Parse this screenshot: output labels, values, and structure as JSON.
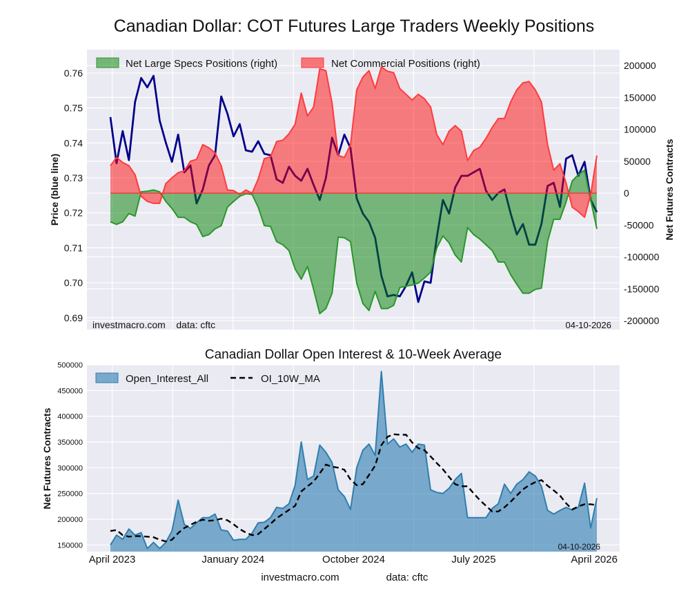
{
  "title": "Canadian Dollar: COT Futures Large Traders Weekly Positions",
  "footer": {
    "site": "investmacro.com",
    "source": "data: cftc"
  },
  "chart_data": [
    {
      "type": "line+area",
      "title": "",
      "grid": true,
      "legend": "top-left",
      "ylabel_left": "Price (blue line)",
      "ylabel_right": "Net Futures Contracts",
      "ylim_left": [
        0.6866,
        0.7667
      ],
      "ylim_right": [
        -214000,
        225000
      ],
      "yticks_left": [
        "0.69",
        "0.70",
        "0.71",
        "0.72",
        "0.73",
        "0.74",
        "0.75",
        "0.76"
      ],
      "yticks_right": [
        "-200000",
        "-150000",
        "-100000",
        "-50000",
        "0",
        "50000",
        "100000",
        "150000",
        "200000"
      ],
      "watermark": "investmacro.com    data: cftc",
      "date_stamp": "04-10-2026",
      "series": [
        {
          "name": "Net Large Specs Positions (right)",
          "axis": "right",
          "kind": "area",
          "color": "#008000",
          "values": [
            -45000,
            -49000,
            -45000,
            -32000,
            -36000,
            2000,
            3000,
            5000,
            2000,
            -13000,
            -24000,
            -38000,
            -38000,
            -45000,
            -49000,
            -68000,
            -65000,
            -56000,
            -51000,
            -22000,
            -13000,
            -5000,
            -1000,
            -2000,
            -22000,
            -51000,
            -52000,
            -76000,
            -81000,
            -90000,
            -119000,
            -135000,
            -115000,
            -151000,
            -189000,
            -181000,
            -157000,
            -69000,
            -70000,
            -76000,
            -141000,
            -173000,
            -184000,
            -154000,
            -181000,
            -181000,
            -176000,
            -148000,
            -146000,
            -144000,
            -141000,
            -133000,
            -124000,
            -86000,
            -67000,
            -78000,
            -97000,
            -108000,
            -54000,
            -65000,
            -72000,
            -81000,
            -90000,
            -108000,
            -108000,
            -128000,
            -143000,
            -157000,
            -157000,
            -151000,
            -149000,
            -76000,
            -41000,
            -41000,
            -14000,
            19000,
            29000,
            36000,
            -11000,
            -56000
          ]
        },
        {
          "name": "Net Commercial Positions (right)",
          "axis": "right",
          "kind": "area",
          "color": "#ff0000",
          "values": [
            43000,
            56000,
            48000,
            43000,
            29000,
            -5000,
            -13000,
            -16000,
            -16000,
            15000,
            24000,
            32000,
            35000,
            50000,
            53000,
            76000,
            71000,
            63000,
            43000,
            5000,
            4000,
            -2000,
            5000,
            0,
            22000,
            54000,
            57000,
            81000,
            83000,
            93000,
            108000,
            157000,
            121000,
            135000,
            195000,
            192000,
            141000,
            59000,
            56000,
            76000,
            162000,
            182000,
            192000,
            164000,
            198000,
            191000,
            189000,
            164000,
            155000,
            146000,
            155000,
            148000,
            135000,
            92000,
            76000,
            97000,
            106000,
            97000,
            51000,
            67000,
            72000,
            86000,
            103000,
            117000,
            117000,
            143000,
            162000,
            173000,
            175000,
            162000,
            143000,
            76000,
            36000,
            46000,
            16000,
            -22000,
            -29000,
            -38000,
            -2000,
            59000
          ]
        },
        {
          "axis": "left",
          "kind": "line",
          "color": "#00008b",
          "values": [
            0.7474,
            0.7342,
            0.7434,
            0.7351,
            0.7517,
            0.7586,
            0.7559,
            0.7592,
            0.7464,
            0.7401,
            0.7346,
            0.7424,
            0.7316,
            0.7336,
            0.7227,
            0.7267,
            0.7336,
            0.7365,
            0.7533,
            0.7484,
            0.7419,
            0.7454,
            0.7379,
            0.7375,
            0.7405,
            0.7369,
            0.7365,
            0.7296,
            0.7286,
            0.7332,
            0.7306,
            0.7292,
            0.7326,
            0.728,
            0.7237,
            0.73,
            0.7415,
            0.7365,
            0.7424,
            0.7385,
            0.7241,
            0.7198,
            0.7174,
            0.7129,
            0.702,
            0.6961,
            0.6965,
            0.6961,
            0.6991,
            0.703,
            0.6945,
            0.7004,
            0.7,
            0.7129,
            0.7237,
            0.7198,
            0.7273,
            0.7306,
            0.7306,
            0.7316,
            0.7326,
            0.7263,
            0.7237,
            0.7257,
            0.7267,
            0.7198,
            0.7138,
            0.7168,
            0.7109,
            0.7109,
            0.7168,
            0.7277,
            0.7286,
            0.7217,
            0.7355,
            0.7365,
            0.7306,
            0.7346,
            0.7237,
            0.7202
          ]
        }
      ]
    },
    {
      "type": "area",
      "title": "Canadian Dollar Open Interest & 10-Week Average",
      "grid": true,
      "legend": "top-left",
      "ylabel": "Net Futures Contracts",
      "ylim": [
        137000,
        500000
      ],
      "yticks": [
        "150000",
        "200000",
        "250000",
        "300000",
        "350000",
        "400000",
        "450000",
        "500000"
      ],
      "xticks": [
        {
          "date": "2023-04-01",
          "label": "April 2023"
        },
        {
          "date": "2024-01-01",
          "label": "January 2024"
        },
        {
          "date": "2024-10-01",
          "label": "October 2024"
        },
        {
          "date": "2025-07-01",
          "label": "July 2025"
        },
        {
          "date": "2026-04-01",
          "label": "April 2026"
        }
      ],
      "date_stamp": "04-10-2026",
      "series": [
        {
          "name": "Open_Interest_All",
          "kind": "area",
          "color": "#2b7bb0",
          "values": [
            150000,
            169000,
            161000,
            181000,
            169000,
            174000,
            143000,
            155000,
            143000,
            155000,
            177000,
            237000,
            190000,
            182000,
            193000,
            203000,
            203000,
            210000,
            179000,
            177000,
            159000,
            161000,
            161000,
            173000,
            193000,
            194000,
            203000,
            223000,
            221000,
            230000,
            266000,
            350000,
            277000,
            284000,
            344000,
            330000,
            310000,
            257000,
            244000,
            219000,
            300000,
            334000,
            346000,
            324000,
            487000,
            346000,
            356000,
            340000,
            346000,
            330000,
            346000,
            344000,
            257000,
            252000,
            250000,
            260000,
            277000,
            289000,
            203000,
            203000,
            203000,
            203000,
            221000,
            230000,
            268000,
            250000,
            268000,
            277000,
            292000,
            284000,
            264000,
            217000,
            210000,
            217000,
            223000,
            218000,
            223000,
            270000,
            183000,
            241000
          ]
        },
        {
          "name": "OI_10W_MA",
          "kind": "dashed-line",
          "color": "#000000",
          "values": [
            177000,
            179000,
            169000,
            166000,
            167000,
            167000,
            166000,
            165000,
            160000,
            157000,
            160000,
            173000,
            183000,
            189000,
            195000,
            199000,
            197000,
            198000,
            201000,
            198000,
            190000,
            181000,
            174000,
            169000,
            171000,
            181000,
            191000,
            202000,
            210000,
            218000,
            226000,
            254000,
            264000,
            273000,
            289000,
            306000,
            302000,
            300000,
            296000,
            277000,
            266000,
            268000,
            286000,
            304000,
            344000,
            360000,
            365000,
            364000,
            364000,
            349000,
            338000,
            334000,
            322000,
            309000,
            297000,
            282000,
            268000,
            264000,
            264000,
            250000,
            237000,
            226000,
            215000,
            215000,
            223000,
            234000,
            246000,
            258000,
            266000,
            272000,
            276000,
            265000,
            256000,
            246000,
            231000,
            219000,
            225000,
            229000,
            229000,
            227000
          ]
        }
      ]
    }
  ],
  "x": [
    "2023-03-28",
    "2023-04-11",
    "2023-04-25",
    "2023-05-09",
    "2023-05-23",
    "2023-06-06",
    "2023-06-20",
    "2023-07-04",
    "2023-07-18",
    "2023-08-01",
    "2023-08-15",
    "2023-08-29",
    "2023-09-12",
    "2023-09-26",
    "2023-10-10",
    "2023-10-24",
    "2023-11-07",
    "2023-11-21",
    "2023-12-05",
    "2023-12-19",
    "2024-01-02",
    "2024-01-16",
    "2024-01-30",
    "2024-02-13",
    "2024-02-27",
    "2024-03-12",
    "2024-03-26",
    "2024-04-09",
    "2024-04-23",
    "2024-05-07",
    "2024-05-21",
    "2024-06-04",
    "2024-06-18",
    "2024-07-02",
    "2024-07-16",
    "2024-07-30",
    "2024-08-13",
    "2024-08-27",
    "2024-09-10",
    "2024-09-24",
    "2024-10-08",
    "2024-10-22",
    "2024-11-05",
    "2024-11-19",
    "2024-12-03",
    "2024-12-17",
    "2024-12-31",
    "2025-01-14",
    "2025-01-28",
    "2025-02-11",
    "2025-02-25",
    "2025-03-11",
    "2025-03-25",
    "2025-04-08",
    "2025-04-22",
    "2025-05-06",
    "2025-05-20",
    "2025-06-03",
    "2025-06-17",
    "2025-07-01",
    "2025-07-15",
    "2025-07-29",
    "2025-08-12",
    "2025-08-26",
    "2025-09-09",
    "2025-09-23",
    "2025-10-07",
    "2025-10-21",
    "2025-11-04",
    "2025-11-18",
    "2025-12-02",
    "2025-12-16",
    "2025-12-30",
    "2026-01-13",
    "2026-01-27",
    "2026-02-10",
    "2026-02-24",
    "2026-03-10",
    "2026-03-24",
    "2026-04-07"
  ]
}
